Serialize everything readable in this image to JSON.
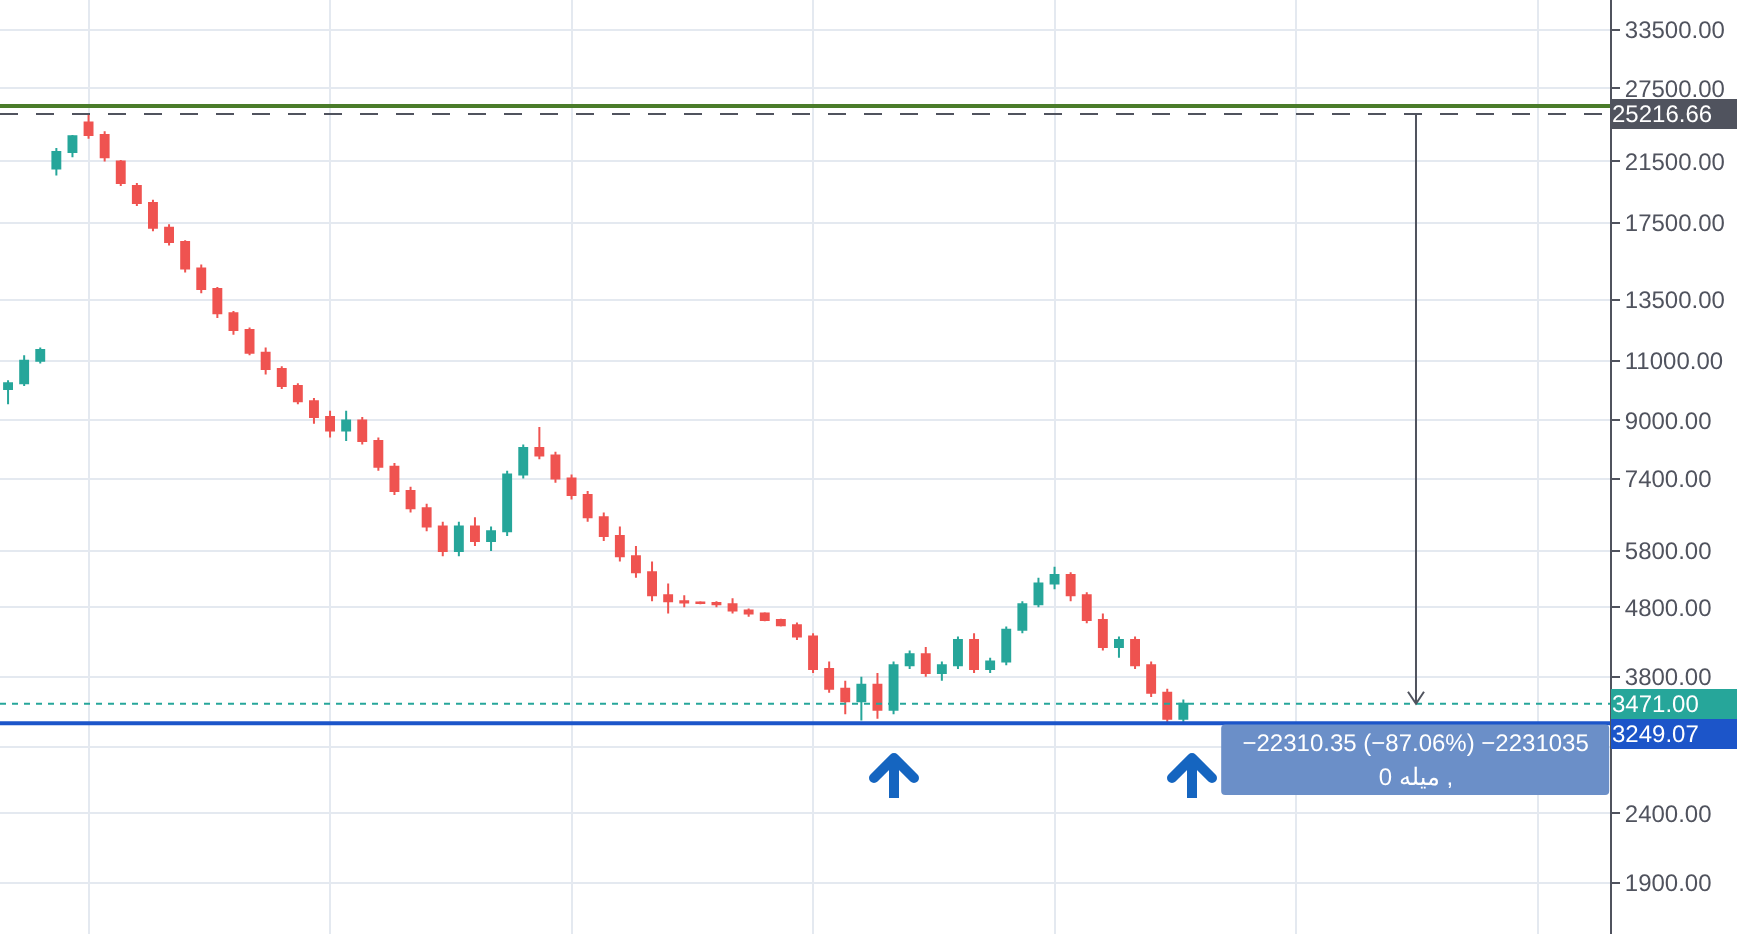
{
  "chart_data": {
    "type": "candlestick",
    "log": "y",
    "grid": true,
    "tick_labels": "y",
    "colors": [
      "#26a69a",
      "#26a69a",
      "#26a69a",
      "#26a69a",
      "#26a69a",
      "#ef5350",
      "#ef5350",
      "#ef5350",
      "#ef5350",
      "#ef5350",
      "#ef5350",
      "#ef5350",
      "#ef5350",
      "#ef5350",
      "#ef5350",
      "#ef5350",
      "#ef5350",
      "#ef5350",
      "#ef5350",
      "#ef5350",
      "#ef5350",
      "#26a69a",
      "#ef5350",
      "#ef5350",
      "#ef5350",
      "#ef5350",
      "#ef5350",
      "#ef5350",
      "#26a69a",
      "#ef5350",
      "#26a69a",
      "#26a69a",
      "#26a69a",
      "#ef5350",
      "#ef5350",
      "#ef5350",
      "#ef5350",
      "#ef5350",
      "#ef5350",
      "#ef5350",
      "#ef5350",
      "#ef5350",
      "#ef5350",
      "#ef5350",
      "#ef5350",
      "#ef5350",
      "#ef5350",
      "#ef5350",
      "#ef5350",
      "#ef5350",
      "#ef5350",
      "#ef5350",
      "#ef5350",
      "#26a69a",
      "#ef5350",
      "#26a69a",
      "#26a69a",
      "#ef5350",
      "#26a69a",
      "#26a69a",
      "#ef5350",
      "#26a69a",
      "#26a69a",
      "#26a69a",
      "#26a69a",
      "#26a69a",
      "#ef5350",
      "#ef5350",
      "#ef5350",
      "#26a69a",
      "#ef5350",
      "#ef5350",
      "#ef5350",
      "#26a69a",
      null,
      null,
      null,
      null,
      null,
      null,
      null,
      null,
      null,
      null,
      null,
      null,
      null,
      null,
      null,
      null,
      null,
      null,
      null,
      null,
      null,
      null,
      null,
      null,
      null,
      null
    ],
    "categories": [
      null,
      null,
      null,
      null,
      null,
      null,
      null,
      null,
      null,
      null,
      null,
      null,
      null,
      null,
      null,
      null,
      null,
      null,
      null,
      null,
      null,
      null,
      null,
      null,
      null,
      null,
      null,
      null,
      null,
      null,
      null,
      null,
      null,
      null,
      null,
      null,
      null,
      null,
      null,
      null,
      null,
      null,
      null,
      null,
      null,
      null,
      null,
      null,
      null,
      null,
      null,
      null,
      null,
      null,
      null,
      null,
      null,
      null,
      null,
      null,
      null,
      null,
      null,
      null,
      null,
      null,
      null,
      null,
      null,
      null,
      null,
      null,
      null,
      null,
      null,
      null,
      null,
      null,
      null,
      null,
      null,
      null,
      null,
      null,
      null,
      null,
      null,
      null,
      null,
      null,
      null,
      null,
      null,
      null,
      null,
      null,
      null,
      null,
      null,
      null
    ],
    "ohlc": [
      [
        10000,
        10300,
        9500,
        10200
      ],
      [
        10200,
        11200,
        10100,
        11000
      ],
      [
        11000,
        11500,
        10900,
        11400
      ],
      [
        21000,
        22500,
        20500,
        22200
      ],
      [
        22200,
        23500,
        21800,
        23400
      ],
      [
        24500,
        25200,
        23200,
        23500
      ],
      [
        23500,
        23800,
        21500,
        21800
      ],
      [
        21500,
        21600,
        19800,
        20000
      ],
      [
        19800,
        20000,
        18500,
        18700
      ],
      [
        18700,
        18900,
        17000,
        17200
      ],
      [
        17200,
        17400,
        16200,
        16400
      ],
      [
        16400,
        16500,
        14800,
        15000
      ],
      [
        15000,
        15200,
        13800,
        14000
      ],
      [
        14000,
        14100,
        12700,
        12900
      ],
      [
        12900,
        13000,
        12000,
        12200
      ],
      [
        12200,
        12300,
        11200,
        11300
      ],
      [
        11300,
        11500,
        10500,
        10700
      ],
      [
        10700,
        10800,
        10000,
        10100
      ],
      [
        10100,
        10200,
        9500,
        9600
      ],
      [
        9600,
        9700,
        8900,
        9100
      ],
      [
        9100,
        9300,
        8500,
        8700
      ],
      [
        8700,
        9300,
        8400,
        9000
      ],
      [
        9000,
        9100,
        8300,
        8400
      ],
      [
        8400,
        8500,
        7600,
        7700
      ],
      [
        7700,
        7800,
        7000,
        7100
      ],
      [
        7100,
        7200,
        6600,
        6700
      ],
      [
        6700,
        6800,
        6200,
        6300
      ],
      [
        6300,
        6400,
        5700,
        5800
      ],
      [
        5800,
        6400,
        5700,
        6300
      ],
      [
        6300,
        6500,
        5900,
        6000
      ],
      [
        6000,
        6300,
        5800,
        6200
      ],
      [
        6200,
        7600,
        6100,
        7500
      ],
      [
        7500,
        8300,
        7400,
        8200
      ],
      [
        8200,
        8800,
        7900,
        8000
      ],
      [
        8000,
        8100,
        7300,
        7400
      ],
      [
        7400,
        7500,
        6900,
        7000
      ],
      [
        7000,
        7100,
        6400,
        6500
      ],
      [
        6500,
        6600,
        6000,
        6100
      ],
      [
        6100,
        6300,
        5600,
        5700
      ],
      [
        5700,
        5900,
        5300,
        5400
      ],
      [
        5400,
        5600,
        4900,
        5000
      ],
      [
        5000,
        5200,
        4700,
        4900
      ],
      [
        4900,
        5000,
        4800,
        4880
      ],
      [
        4880,
        4900,
        4850,
        4870
      ],
      [
        4870,
        4900,
        4800,
        4850
      ],
      [
        4850,
        4950,
        4700,
        4750
      ],
      [
        4750,
        4780,
        4650,
        4700
      ],
      [
        4700,
        4720,
        4580,
        4600
      ],
      [
        4600,
        4620,
        4500,
        4520
      ],
      [
        4520,
        4560,
        4300,
        4350
      ],
      [
        4350,
        4400,
        3850,
        3900
      ],
      [
        3900,
        4000,
        3600,
        3650
      ],
      [
        3650,
        3750,
        3350,
        3500
      ],
      [
        3500,
        3800,
        3280,
        3700
      ],
      [
        3700,
        3850,
        3300,
        3400
      ],
      [
        3400,
        4000,
        3350,
        3950
      ],
      [
        3950,
        4150,
        3900,
        4100
      ],
      [
        4100,
        4200,
        3800,
        3850
      ],
      [
        3850,
        4000,
        3750,
        3950
      ],
      [
        3950,
        4350,
        3900,
        4300
      ],
      [
        4300,
        4400,
        3850,
        3900
      ],
      [
        3900,
        4050,
        3850,
        4000
      ],
      [
        4000,
        4500,
        3950,
        4450
      ],
      [
        4450,
        4900,
        4400,
        4850
      ],
      [
        4850,
        5300,
        4800,
        5200
      ],
      [
        5200,
        5500,
        5100,
        5350
      ],
      [
        5350,
        5400,
        4900,
        5000
      ],
      [
        5000,
        5050,
        4550,
        4600
      ],
      [
        4600,
        4700,
        4150,
        4200
      ],
      [
        4200,
        4350,
        4050,
        4300
      ],
      [
        4300,
        4350,
        3900,
        3950
      ],
      [
        3950,
        4000,
        3550,
        3600
      ],
      [
        3600,
        3650,
        3250,
        3300
      ],
      [
        3300,
        3520,
        3250,
        3471
      ],
      null,
      null,
      null,
      null,
      null,
      null,
      null,
      null,
      null,
      null,
      null,
      null,
      null,
      null,
      null,
      null,
      null,
      null,
      null,
      null,
      null,
      null,
      null,
      null,
      null,
      null
    ],
    "ylim": [
      1600,
      37000
    ],
    "yticks": [
      {
        "value": 1900,
        "label": "1900.00"
      },
      {
        "value": 2400,
        "label": "2400.00"
      },
      {
        "value": 3000,
        "label": null
      },
      {
        "value": 3800,
        "label": "3800.00"
      },
      {
        "value": 4800,
        "label": "4800.00"
      },
      {
        "value": 5800,
        "label": "5800.00"
      },
      {
        "value": 7400,
        "label": "7400.00"
      },
      {
        "value": 9000,
        "label": "9000.00"
      },
      {
        "value": 11000,
        "label": "11000.00"
      },
      {
        "value": 13500,
        "label": "13500.00"
      },
      {
        "value": 17500,
        "label": "17500.00"
      },
      {
        "value": 21500,
        "label": "21500.00"
      },
      {
        "value": 27500,
        "label": "27500.00"
      },
      {
        "value": 33500,
        "label": "33500.00"
      }
    ],
    "ref_lines": [
      {
        "axis": "y",
        "value": 25900,
        "color": "#4a7c2a",
        "line_style": "solid"
      },
      {
        "axis": "y",
        "value": 25216.66,
        "label": "25216.66",
        "color": "#50535e",
        "line_style": "dashed"
      },
      {
        "axis": "y",
        "value": 3471,
        "label": "3471.00",
        "color": "#26a69a",
        "line_style": "dotted"
      },
      {
        "axis": "y",
        "value": 3249.07,
        "label": "3249.07",
        "color": "#1c55c9",
        "line_style": "solid"
      }
    ],
    "annotations": [
      "−22310.35 (−87.06%) −2231035",
      "میله 0 ,"
    ]
  }
}
